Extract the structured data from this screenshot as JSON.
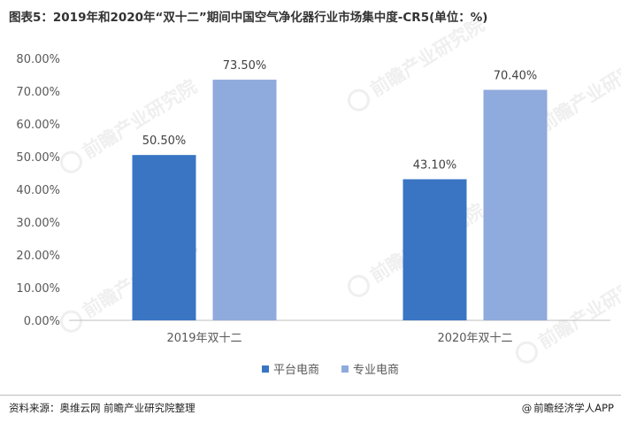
{
  "title": "图表5：2019年和2020年“双十二”期间中国空气净化器行业市场集中度-CR5(单位：%)",
  "chart_data": {
    "type": "bar",
    "categories": [
      "2019年双十二",
      "2020年双十二"
    ],
    "series": [
      {
        "name": "平台电商",
        "values": [
          50.5,
          43.1
        ],
        "labels": [
          "50.50%",
          "43.10%"
        ],
        "color": "#3a75c4"
      },
      {
        "name": "专业电商",
        "values": [
          73.5,
          70.4
        ],
        "labels": [
          "73.50%",
          "70.40%"
        ],
        "color": "#8faadc"
      }
    ],
    "ylim": [
      0,
      80
    ],
    "yticks": [
      "0.00%",
      "10.00%",
      "20.00%",
      "30.00%",
      "40.00%",
      "50.00%",
      "60.00%",
      "70.00%",
      "80.00%"
    ],
    "grid": false,
    "legend": "bottom"
  },
  "watermark": "前瞻产业研究院",
  "footer": {
    "source": "资料来源：奥维云网 前瞻产业研究院整理",
    "brand": "前瞻经济学人APP",
    "brand_icon": "at-icon"
  }
}
